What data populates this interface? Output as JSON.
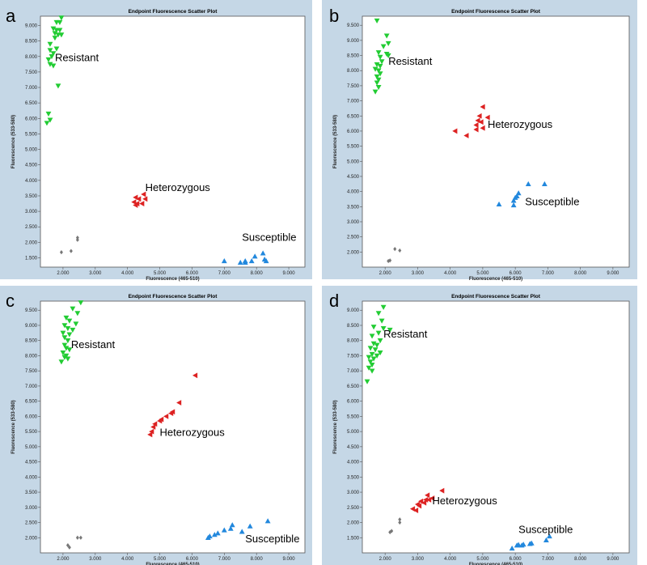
{
  "chart_data": [
    {
      "type": "scatter",
      "panel": "a",
      "title": "Endpoint Fluorescence Scatter Plot",
      "xlabel": "Fluorescence (465-510)",
      "ylabel": "Fluorescence (533-580)",
      "xlim": [
        1.3,
        9.5
      ],
      "ylim": [
        1.2,
        9.3
      ],
      "xticks": [
        "2.000",
        "3.000",
        "4.000",
        "5.000",
        "6.000",
        "7.000",
        "8.000",
        "9.000"
      ],
      "xtick_values": [
        2,
        3,
        4,
        5,
        6,
        7,
        8,
        9
      ],
      "yticks": [
        "1.500",
        "2.000",
        "2.500",
        "3.000",
        "3.500",
        "4.000",
        "4.500",
        "5.000",
        "5.500",
        "6.000",
        "6.500",
        "7.000",
        "7.500",
        "8.000",
        "8.500",
        "9.000"
      ],
      "ytick_values": [
        1.5,
        2,
        2.5,
        3,
        3.5,
        4,
        4.5,
        5,
        5.5,
        6,
        6.5,
        7,
        7.5,
        8,
        8.5,
        9
      ],
      "series": [
        {
          "name": "Resistant",
          "label_at": [
            1.75,
            7.85
          ],
          "color": "#22cc33",
          "marker": "triangle-down",
          "points": [
            [
              1.95,
              9.25
            ],
            [
              1.8,
              9.1
            ],
            [
              1.9,
              9.1
            ],
            [
              1.7,
              8.9
            ],
            [
              1.8,
              8.85
            ],
            [
              1.9,
              8.85
            ],
            [
              1.75,
              8.75
            ],
            [
              1.85,
              8.7
            ],
            [
              1.95,
              8.7
            ],
            [
              1.75,
              8.6
            ],
            [
              1.6,
              8.4
            ],
            [
              1.8,
              8.25
            ],
            [
              1.6,
              8.2
            ],
            [
              1.7,
              8.1
            ],
            [
              1.65,
              8.0
            ],
            [
              1.55,
              7.9
            ],
            [
              1.6,
              7.75
            ],
            [
              1.7,
              7.7
            ],
            [
              1.85,
              7.05
            ],
            [
              1.55,
              6.15
            ],
            [
              1.6,
              5.95
            ],
            [
              1.5,
              5.85
            ]
          ]
        },
        {
          "name": "Heterozygous",
          "label_at": [
            4.55,
            3.65
          ],
          "color": "#dd2222",
          "marker": "triangle-left",
          "points": [
            [
              4.5,
              3.55
            ],
            [
              4.25,
              3.45
            ],
            [
              4.35,
              3.4
            ],
            [
              4.55,
              3.4
            ],
            [
              4.2,
              3.3
            ],
            [
              4.3,
              3.25
            ],
            [
              4.45,
              3.25
            ],
            [
              4.25,
              3.2
            ]
          ]
        },
        {
          "name": "Susceptible",
          "label_at": [
            7.55,
            2.05
          ],
          "color": "#2288dd",
          "marker": "triangle-up",
          "points": [
            [
              8.2,
              1.65
            ],
            [
              7.95,
              1.55
            ],
            [
              8.25,
              1.45
            ],
            [
              7.0,
              1.4
            ],
            [
              7.5,
              1.35
            ],
            [
              7.65,
              1.35
            ],
            [
              7.65,
              1.4
            ],
            [
              7.85,
              1.4
            ],
            [
              8.3,
              1.4
            ]
          ]
        },
        {
          "name": "",
          "color": "#777777",
          "marker": "diamond",
          "points": [
            [
              2.45,
              2.15
            ],
            [
              2.45,
              2.08
            ],
            [
              2.25,
              1.72
            ],
            [
              1.95,
              1.68
            ]
          ]
        }
      ]
    },
    {
      "type": "scatter",
      "panel": "b",
      "title": "Endpoint Fluorescence Scatter Plot",
      "xlabel": "Fluorescence (465-510)",
      "ylabel": "Fluorescence (533-580)",
      "xlim": [
        1.3,
        9.5
      ],
      "ylim": [
        1.5,
        9.8
      ],
      "xticks": [
        "2.000",
        "3.000",
        "4.000",
        "5.000",
        "6.000",
        "7.000",
        "8.000",
        "9.000"
      ],
      "xtick_values": [
        2,
        3,
        4,
        5,
        6,
        7,
        8,
        9
      ],
      "yticks": [
        "2.000",
        "2.500",
        "3.000",
        "3.500",
        "4.000",
        "4.500",
        "5.000",
        "5.500",
        "6.000",
        "6.500",
        "7.000",
        "7.500",
        "8.000",
        "8.500",
        "9.000",
        "9.500"
      ],
      "ytick_values": [
        2,
        2.5,
        3,
        3.5,
        4,
        4.5,
        5,
        5.5,
        6,
        6.5,
        7,
        7.5,
        8,
        8.5,
        9,
        9.5
      ],
      "series": [
        {
          "name": "Resistant",
          "label_at": [
            2.1,
            8.2
          ],
          "color": "#22cc33",
          "marker": "triangle-down",
          "points": [
            [
              1.75,
              9.65
            ],
            [
              2.05,
              9.15
            ],
            [
              2.1,
              8.9
            ],
            [
              1.95,
              8.8
            ],
            [
              1.8,
              8.6
            ],
            [
              2.05,
              8.55
            ],
            [
              2.1,
              8.5
            ],
            [
              1.85,
              8.45
            ],
            [
              1.9,
              8.3
            ],
            [
              1.75,
              8.2
            ],
            [
              1.85,
              8.15
            ],
            [
              1.7,
              8.05
            ],
            [
              1.8,
              8.0
            ],
            [
              1.85,
              7.9
            ],
            [
              1.75,
              7.8
            ],
            [
              1.8,
              7.7
            ],
            [
              1.75,
              7.6
            ],
            [
              1.8,
              7.45
            ],
            [
              1.7,
              7.3
            ]
          ]
        },
        {
          "name": "Heterozygous",
          "label_at": [
            5.15,
            6.1
          ],
          "color": "#dd2222",
          "marker": "triangle-left",
          "points": [
            [
              5.0,
              6.8
            ],
            [
              4.9,
              6.5
            ],
            [
              5.15,
              6.45
            ],
            [
              4.85,
              6.35
            ],
            [
              4.95,
              6.3
            ],
            [
              4.8,
              6.2
            ],
            [
              5.0,
              6.1
            ],
            [
              4.8,
              6.05
            ],
            [
              4.15,
              6.0
            ],
            [
              4.5,
              5.85
            ]
          ]
        },
        {
          "name": "Susceptible",
          "label_at": [
            6.3,
            3.55
          ],
          "color": "#2288dd",
          "marker": "triangle-up",
          "points": [
            [
              6.4,
              4.25
            ],
            [
              6.9,
              4.25
            ],
            [
              6.1,
              3.95
            ],
            [
              6.05,
              3.85
            ],
            [
              6.0,
              3.8
            ],
            [
              5.95,
              3.7
            ],
            [
              5.5,
              3.58
            ],
            [
              5.95,
              3.55
            ]
          ]
        },
        {
          "name": "",
          "color": "#777777",
          "marker": "diamond",
          "points": [
            [
              2.3,
              2.1
            ],
            [
              2.45,
              2.05
            ],
            [
              2.15,
              1.72
            ],
            [
              2.1,
              1.7
            ]
          ]
        }
      ]
    },
    {
      "type": "scatter",
      "panel": "c",
      "title": "Endpoint Fluorescence Scatter Plot",
      "xlabel": "Fluorescence (465-510)",
      "ylabel": "Fluorescence (533-580)",
      "xlim": [
        1.3,
        9.5
      ],
      "ylim": [
        1.5,
        9.8
      ],
      "xticks": [
        "2.000",
        "3.000",
        "4.000",
        "5.000",
        "6.000",
        "7.000",
        "8.000",
        "9.000"
      ],
      "xtick_values": [
        2,
        3,
        4,
        5,
        6,
        7,
        8,
        9
      ],
      "yticks": [
        "2.000",
        "2.500",
        "3.000",
        "3.500",
        "4.000",
        "4.500",
        "5.000",
        "5.500",
        "6.000",
        "6.500",
        "7.000",
        "7.500",
        "8.000",
        "8.500",
        "9.000",
        "9.500"
      ],
      "ytick_values": [
        2,
        2.5,
        3,
        3.5,
        4,
        4.5,
        5,
        5.5,
        6,
        6.5,
        7,
        7.5,
        8,
        8.5,
        9,
        9.5
      ],
      "series": [
        {
          "name": "Resistant",
          "label_at": [
            2.25,
            8.25
          ],
          "color": "#22cc33",
          "marker": "triangle-down",
          "points": [
            [
              2.55,
              9.75
            ],
            [
              2.3,
              9.55
            ],
            [
              2.45,
              9.4
            ],
            [
              2.1,
              9.25
            ],
            [
              2.2,
              9.15
            ],
            [
              2.4,
              9.05
            ],
            [
              2.05,
              9.0
            ],
            [
              2.15,
              8.9
            ],
            [
              2.3,
              8.85
            ],
            [
              2.0,
              8.75
            ],
            [
              2.2,
              8.7
            ],
            [
              2.05,
              8.6
            ],
            [
              2.15,
              8.5
            ],
            [
              2.05,
              8.35
            ],
            [
              2.1,
              8.25
            ],
            [
              2.2,
              8.2
            ],
            [
              2.0,
              8.1
            ],
            [
              2.1,
              8.0
            ],
            [
              2.05,
              7.95
            ],
            [
              2.15,
              7.9
            ],
            [
              1.95,
              7.8
            ]
          ]
        },
        {
          "name": "Heterozygous",
          "label_at": [
            5.0,
            5.35
          ],
          "color": "#dd2222",
          "marker": "triangle-left",
          "points": [
            [
              6.1,
              7.35
            ],
            [
              5.6,
              6.45
            ],
            [
              5.4,
              6.15
            ],
            [
              5.35,
              6.1
            ],
            [
              5.2,
              6.0
            ],
            [
              5.05,
              5.9
            ],
            [
              5.0,
              5.85
            ],
            [
              4.85,
              5.75
            ],
            [
              4.8,
              5.65
            ],
            [
              4.75,
              5.5
            ],
            [
              4.7,
              5.4
            ]
          ]
        },
        {
          "name": "Susceptible",
          "label_at": [
            7.65,
            1.85
          ],
          "color": "#2288dd",
          "marker": "triangle-up",
          "points": [
            [
              8.35,
              2.55
            ],
            [
              7.25,
              2.42
            ],
            [
              7.8,
              2.38
            ],
            [
              7.2,
              2.3
            ],
            [
              7.0,
              2.25
            ],
            [
              7.55,
              2.2
            ],
            [
              6.8,
              2.15
            ],
            [
              6.7,
              2.1
            ],
            [
              6.55,
              2.05
            ],
            [
              6.5,
              2.0
            ]
          ]
        },
        {
          "name": "",
          "color": "#777777",
          "marker": "diamond",
          "points": [
            [
              2.45,
              2.0
            ],
            [
              2.55,
              2.0
            ],
            [
              2.15,
              1.75
            ],
            [
              2.2,
              1.68
            ]
          ]
        }
      ]
    },
    {
      "type": "scatter",
      "panel": "d",
      "title": "Endpoint Fluorescence Scatter Plot",
      "xlabel": "Fluorescence (465-510)",
      "ylabel": "Fluorescence (533-580)",
      "xlim": [
        1.3,
        9.5
      ],
      "ylim": [
        1.0,
        9.3
      ],
      "xticks": [
        "2.000",
        "3.000",
        "4.000",
        "5.000",
        "6.000",
        "7.000",
        "8.000",
        "9.000"
      ],
      "xtick_values": [
        2,
        3,
        4,
        5,
        6,
        7,
        8,
        9
      ],
      "yticks": [
        "1.500",
        "2.000",
        "2.500",
        "3.000",
        "3.500",
        "4.000",
        "4.500",
        "5.000",
        "5.500",
        "6.000",
        "6.500",
        "7.000",
        "7.500",
        "8.000",
        "8.500",
        "9.000"
      ],
      "ytick_values": [
        1.5,
        2,
        2.5,
        3,
        3.5,
        4,
        4.5,
        5,
        5.5,
        6,
        6.5,
        7,
        7.5,
        8,
        8.5,
        9
      ],
      "series": [
        {
          "name": "Resistant",
          "label_at": [
            1.95,
            8.1
          ],
          "color": "#22cc33",
          "marker": "triangle-down",
          "points": [
            [
              1.95,
              9.1
            ],
            [
              1.8,
              8.9
            ],
            [
              1.9,
              8.65
            ],
            [
              1.65,
              8.45
            ],
            [
              1.95,
              8.4
            ],
            [
              2.15,
              8.35
            ],
            [
              1.8,
              8.25
            ],
            [
              1.6,
              8.15
            ],
            [
              1.85,
              8.0
            ],
            [
              1.65,
              7.9
            ],
            [
              1.75,
              7.85
            ],
            [
              1.55,
              7.75
            ],
            [
              1.7,
              7.7
            ],
            [
              1.85,
              7.6
            ],
            [
              1.6,
              7.55
            ],
            [
              1.75,
              7.5
            ],
            [
              1.5,
              7.45
            ],
            [
              1.65,
              7.4
            ],
            [
              1.55,
              7.3
            ],
            [
              1.6,
              7.2
            ],
            [
              1.5,
              7.1
            ],
            [
              1.6,
              7.0
            ],
            [
              1.45,
              6.65
            ]
          ]
        },
        {
          "name": "Heterozygous",
          "label_at": [
            3.45,
            2.6
          ],
          "color": "#dd2222",
          "marker": "triangle-left",
          "points": [
            [
              3.75,
              3.05
            ],
            [
              3.3,
              2.9
            ],
            [
              3.45,
              2.8
            ],
            [
              3.25,
              2.75
            ],
            [
              3.35,
              2.75
            ],
            [
              3.1,
              2.7
            ],
            [
              3.2,
              2.65
            ],
            [
              3.0,
              2.6
            ],
            [
              3.05,
              2.55
            ],
            [
              2.85,
              2.45
            ],
            [
              2.95,
              2.4
            ]
          ]
        },
        {
          "name": "Susceptible",
          "label_at": [
            6.1,
            1.65
          ],
          "color": "#2288dd",
          "marker": "triangle-up",
          "points": [
            [
              7.05,
              1.55
            ],
            [
              6.95,
              1.42
            ],
            [
              6.5,
              1.32
            ],
            [
              6.45,
              1.3
            ],
            [
              6.25,
              1.28
            ],
            [
              6.1,
              1.27
            ],
            [
              6.05,
              1.25
            ],
            [
              6.2,
              1.25
            ],
            [
              5.9,
              1.15
            ]
          ]
        },
        {
          "name": "",
          "color": "#777777",
          "marker": "diamond",
          "points": [
            [
              2.45,
              2.1
            ],
            [
              2.45,
              2.0
            ],
            [
              2.2,
              1.72
            ],
            [
              2.15,
              1.68
            ]
          ]
        }
      ]
    }
  ]
}
